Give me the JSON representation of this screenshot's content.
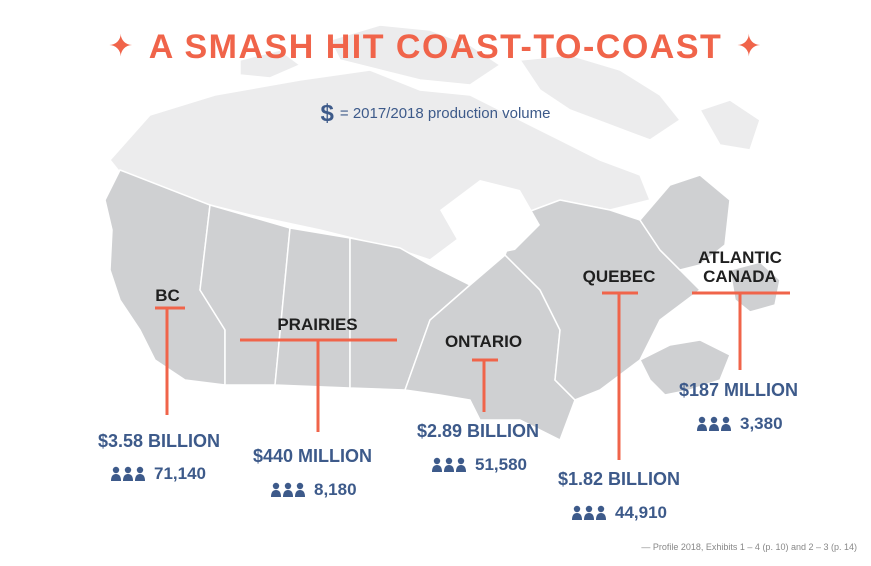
{
  "title": "A SMASH HIT COAST-TO-COAST",
  "title_star_glyph": "✦",
  "legend": {
    "symbol": "$",
    "text": "= 2017/2018 production volume"
  },
  "colors": {
    "accent": "#f0644a",
    "text_blue": "#3d5a8a",
    "map_fill": "#cfd0d2",
    "map_north_fill": "#ececed",
    "map_border": "#ffffff",
    "label_text": "#1f1f1f"
  },
  "icons": {
    "people": "people-group-icon",
    "title_star": "sparkle-star-icon"
  },
  "regions": [
    {
      "id": "bc",
      "name_line1": "BC",
      "name_line2": "",
      "amount": "$3.58 BILLION",
      "jobs": "71,140"
    },
    {
      "id": "prairies",
      "name_line1": "PRAIRIES",
      "name_line2": "",
      "amount": "$440 MILLION",
      "jobs": "8,180"
    },
    {
      "id": "ontario",
      "name_line1": "ONTARIO",
      "name_line2": "",
      "amount": "$2.89 BILLION",
      "jobs": "51,580"
    },
    {
      "id": "quebec",
      "name_line1": "QUEBEC",
      "name_line2": "",
      "amount": "$1.82 BILLION",
      "jobs": "44,910"
    },
    {
      "id": "atlantic",
      "name_line1": "ATLANTIC",
      "name_line2": "CANADA",
      "amount": "$187 MILLION",
      "jobs": "3,380"
    }
  ],
  "source": "— Profile 2018, Exhibits 1 – 4 (p. 10) and 2 – 3 (p. 14)"
}
